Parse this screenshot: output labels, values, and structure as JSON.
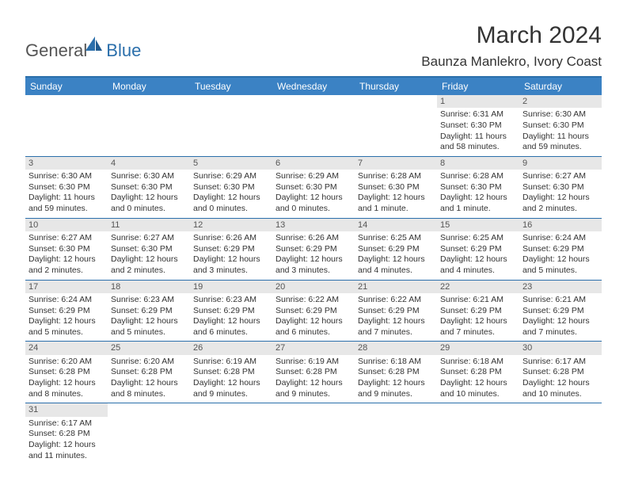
{
  "logo": {
    "text1": "General",
    "text2": "Blue"
  },
  "title": "March 2024",
  "location": "Baunza Manlekro, Ivory Coast",
  "colors": {
    "header_bg": "#3b82c4",
    "header_border": "#2b6fab",
    "cell_border": "#2b6fab",
    "daynum_bg": "#e7e7e7",
    "text": "#333333",
    "logo_accent": "#2b6fab"
  },
  "day_headers": [
    "Sunday",
    "Monday",
    "Tuesday",
    "Wednesday",
    "Thursday",
    "Friday",
    "Saturday"
  ],
  "weeks": [
    [
      null,
      null,
      null,
      null,
      null,
      {
        "n": "1",
        "sunrise": "Sunrise: 6:31 AM",
        "sunset": "Sunset: 6:30 PM",
        "daylight": "Daylight: 11 hours and 58 minutes."
      },
      {
        "n": "2",
        "sunrise": "Sunrise: 6:30 AM",
        "sunset": "Sunset: 6:30 PM",
        "daylight": "Daylight: 11 hours and 59 minutes."
      }
    ],
    [
      {
        "n": "3",
        "sunrise": "Sunrise: 6:30 AM",
        "sunset": "Sunset: 6:30 PM",
        "daylight": "Daylight: 11 hours and 59 minutes."
      },
      {
        "n": "4",
        "sunrise": "Sunrise: 6:30 AM",
        "sunset": "Sunset: 6:30 PM",
        "daylight": "Daylight: 12 hours and 0 minutes."
      },
      {
        "n": "5",
        "sunrise": "Sunrise: 6:29 AM",
        "sunset": "Sunset: 6:30 PM",
        "daylight": "Daylight: 12 hours and 0 minutes."
      },
      {
        "n": "6",
        "sunrise": "Sunrise: 6:29 AM",
        "sunset": "Sunset: 6:30 PM",
        "daylight": "Daylight: 12 hours and 0 minutes."
      },
      {
        "n": "7",
        "sunrise": "Sunrise: 6:28 AM",
        "sunset": "Sunset: 6:30 PM",
        "daylight": "Daylight: 12 hours and 1 minute."
      },
      {
        "n": "8",
        "sunrise": "Sunrise: 6:28 AM",
        "sunset": "Sunset: 6:30 PM",
        "daylight": "Daylight: 12 hours and 1 minute."
      },
      {
        "n": "9",
        "sunrise": "Sunrise: 6:27 AM",
        "sunset": "Sunset: 6:30 PM",
        "daylight": "Daylight: 12 hours and 2 minutes."
      }
    ],
    [
      {
        "n": "10",
        "sunrise": "Sunrise: 6:27 AM",
        "sunset": "Sunset: 6:30 PM",
        "daylight": "Daylight: 12 hours and 2 minutes."
      },
      {
        "n": "11",
        "sunrise": "Sunrise: 6:27 AM",
        "sunset": "Sunset: 6:30 PM",
        "daylight": "Daylight: 12 hours and 2 minutes."
      },
      {
        "n": "12",
        "sunrise": "Sunrise: 6:26 AM",
        "sunset": "Sunset: 6:29 PM",
        "daylight": "Daylight: 12 hours and 3 minutes."
      },
      {
        "n": "13",
        "sunrise": "Sunrise: 6:26 AM",
        "sunset": "Sunset: 6:29 PM",
        "daylight": "Daylight: 12 hours and 3 minutes."
      },
      {
        "n": "14",
        "sunrise": "Sunrise: 6:25 AM",
        "sunset": "Sunset: 6:29 PM",
        "daylight": "Daylight: 12 hours and 4 minutes."
      },
      {
        "n": "15",
        "sunrise": "Sunrise: 6:25 AM",
        "sunset": "Sunset: 6:29 PM",
        "daylight": "Daylight: 12 hours and 4 minutes."
      },
      {
        "n": "16",
        "sunrise": "Sunrise: 6:24 AM",
        "sunset": "Sunset: 6:29 PM",
        "daylight": "Daylight: 12 hours and 5 minutes."
      }
    ],
    [
      {
        "n": "17",
        "sunrise": "Sunrise: 6:24 AM",
        "sunset": "Sunset: 6:29 PM",
        "daylight": "Daylight: 12 hours and 5 minutes."
      },
      {
        "n": "18",
        "sunrise": "Sunrise: 6:23 AM",
        "sunset": "Sunset: 6:29 PM",
        "daylight": "Daylight: 12 hours and 5 minutes."
      },
      {
        "n": "19",
        "sunrise": "Sunrise: 6:23 AM",
        "sunset": "Sunset: 6:29 PM",
        "daylight": "Daylight: 12 hours and 6 minutes."
      },
      {
        "n": "20",
        "sunrise": "Sunrise: 6:22 AM",
        "sunset": "Sunset: 6:29 PM",
        "daylight": "Daylight: 12 hours and 6 minutes."
      },
      {
        "n": "21",
        "sunrise": "Sunrise: 6:22 AM",
        "sunset": "Sunset: 6:29 PM",
        "daylight": "Daylight: 12 hours and 7 minutes."
      },
      {
        "n": "22",
        "sunrise": "Sunrise: 6:21 AM",
        "sunset": "Sunset: 6:29 PM",
        "daylight": "Daylight: 12 hours and 7 minutes."
      },
      {
        "n": "23",
        "sunrise": "Sunrise: 6:21 AM",
        "sunset": "Sunset: 6:29 PM",
        "daylight": "Daylight: 12 hours and 7 minutes."
      }
    ],
    [
      {
        "n": "24",
        "sunrise": "Sunrise: 6:20 AM",
        "sunset": "Sunset: 6:28 PM",
        "daylight": "Daylight: 12 hours and 8 minutes."
      },
      {
        "n": "25",
        "sunrise": "Sunrise: 6:20 AM",
        "sunset": "Sunset: 6:28 PM",
        "daylight": "Daylight: 12 hours and 8 minutes."
      },
      {
        "n": "26",
        "sunrise": "Sunrise: 6:19 AM",
        "sunset": "Sunset: 6:28 PM",
        "daylight": "Daylight: 12 hours and 9 minutes."
      },
      {
        "n": "27",
        "sunrise": "Sunrise: 6:19 AM",
        "sunset": "Sunset: 6:28 PM",
        "daylight": "Daylight: 12 hours and 9 minutes."
      },
      {
        "n": "28",
        "sunrise": "Sunrise: 6:18 AM",
        "sunset": "Sunset: 6:28 PM",
        "daylight": "Daylight: 12 hours and 9 minutes."
      },
      {
        "n": "29",
        "sunrise": "Sunrise: 6:18 AM",
        "sunset": "Sunset: 6:28 PM",
        "daylight": "Daylight: 12 hours and 10 minutes."
      },
      {
        "n": "30",
        "sunrise": "Sunrise: 6:17 AM",
        "sunset": "Sunset: 6:28 PM",
        "daylight": "Daylight: 12 hours and 10 minutes."
      }
    ],
    [
      {
        "n": "31",
        "sunrise": "Sunrise: 6:17 AM",
        "sunset": "Sunset: 6:28 PM",
        "daylight": "Daylight: 12 hours and 11 minutes."
      },
      null,
      null,
      null,
      null,
      null,
      null
    ]
  ]
}
